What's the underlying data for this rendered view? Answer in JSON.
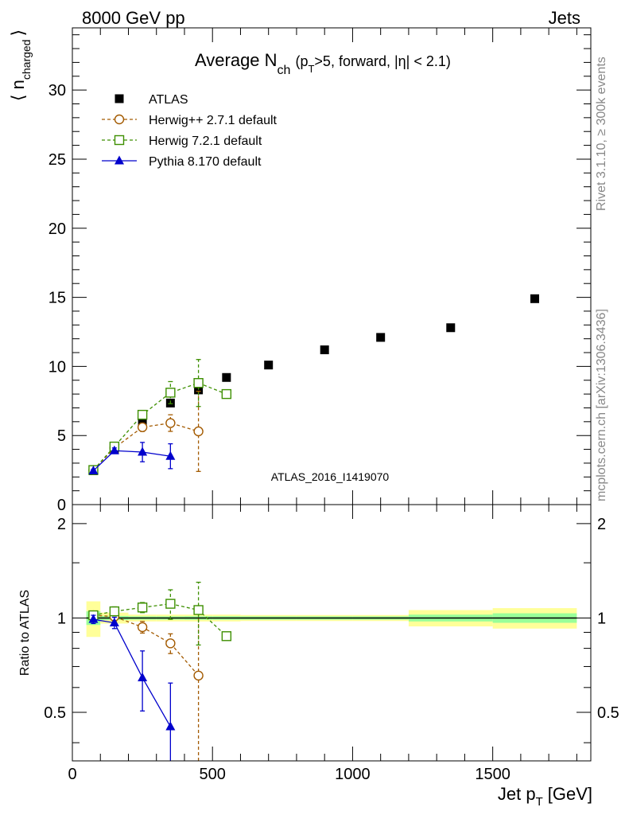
{
  "header": {
    "left": "8000 GeV pp",
    "right": "Jets"
  },
  "side_labels": {
    "rivet": "Rivet 3.1.10, ≥ 300k events",
    "mcplots": "mcplots.cern.ch [arXiv:1306.3436]"
  },
  "analysis_id": "ATLAS_2016_I1419070",
  "chart_data": {
    "type": "scatter",
    "title": {
      "main": "Average N",
      "main_sub": "ch",
      "cond_a": "(p",
      "cond_a_sub": "T",
      "cond_b": ">5, forward, |η| < 2.1)"
    },
    "xlabel": {
      "main": "Jet p",
      "sub": "T",
      "unit": "[GeV]"
    },
    "ylabel": {
      "open": "⟨ n",
      "sub": "charged",
      "close": "⟩"
    },
    "ratio_ylabel": "Ratio to ATLAS",
    "xlim": [
      0,
      1850
    ],
    "ylim": [
      0,
      34.5
    ],
    "ratio_ylim": [
      0.35,
      2.3
    ],
    "x_ticks": [
      "0",
      "500",
      "1000",
      "1500"
    ],
    "y_ticks": [
      "0",
      "5",
      "10",
      "15",
      "20",
      "25",
      "30"
    ],
    "ratio_y_ticks": [
      "0.5",
      "1",
      "2"
    ],
    "legend_position": "top-left",
    "series": [
      {
        "name": "ATLAS",
        "kind": "data",
        "color": "#000000",
        "marker": "filled-square",
        "x": [
          75,
          150,
          250,
          350,
          450,
          550,
          700,
          900,
          1100,
          1350,
          1650
        ],
        "y": [
          2.45,
          4.0,
          6.0,
          7.35,
          8.3,
          9.2,
          10.1,
          11.2,
          12.1,
          12.8,
          14.9
        ],
        "xlo": [
          50,
          100,
          200,
          300,
          400,
          500,
          600,
          800,
          1000,
          1200,
          1500
        ],
        "xhi": [
          100,
          200,
          300,
          400,
          500,
          600,
          800,
          1000,
          1200,
          1500,
          1800
        ],
        "ratio_band_inner": [
          0.05,
          0.015,
          0.012,
          0.012,
          0.013,
          0.013,
          0.012,
          0.012,
          0.012,
          0.025,
          0.035
        ],
        "ratio_band_outer": [
          0.13,
          0.04,
          0.025,
          0.025,
          0.025,
          0.025,
          0.022,
          0.022,
          0.022,
          0.06,
          0.075
        ]
      },
      {
        "name": "Herwig++ 2.7.1 default",
        "kind": "mc",
        "color": "#a35a00",
        "marker": "open-circle",
        "dashed": true,
        "x": [
          75,
          150,
          250,
          350,
          450
        ],
        "y": [
          2.5,
          4.1,
          5.6,
          5.9,
          5.3
        ],
        "yerr": [
          0.1,
          0.15,
          0.3,
          0.6,
          2.9
        ],
        "ratio": [
          1.02,
          1.01,
          0.935,
          0.83,
          0.655
        ],
        "ratio_err": [
          0.03,
          0.035,
          0.04,
          0.06,
          0.38
        ]
      },
      {
        "name": "Herwig 7.2.1 default",
        "kind": "mc",
        "color": "#3d8f00",
        "marker": "open-square",
        "dashed": true,
        "x": [
          75,
          150,
          250,
          350,
          450,
          550
        ],
        "y": [
          2.5,
          4.2,
          6.5,
          8.1,
          8.8,
          8.0
        ],
        "yerr": [
          0.1,
          0.15,
          0.3,
          0.8,
          1.7,
          0.15
        ],
        "ratio": [
          1.02,
          1.05,
          1.08,
          1.11,
          1.06,
          0.875
        ],
        "ratio_err": [
          0.03,
          0.035,
          0.04,
          0.12,
          0.24,
          0.02
        ]
      },
      {
        "name": "Pythia 8.170 default",
        "kind": "mc",
        "color": "#0000cc",
        "marker": "filled-triangle",
        "dashed": false,
        "x": [
          75,
          150,
          250,
          350
        ],
        "y": [
          2.45,
          3.9,
          3.8,
          3.5
        ],
        "yerr": [
          0.1,
          0.2,
          0.7,
          0.9
        ],
        "ratio": [
          0.99,
          0.965,
          0.645,
          0.45
        ],
        "ratio_err": [
          0.03,
          0.04,
          0.14,
          0.17
        ]
      }
    ]
  }
}
